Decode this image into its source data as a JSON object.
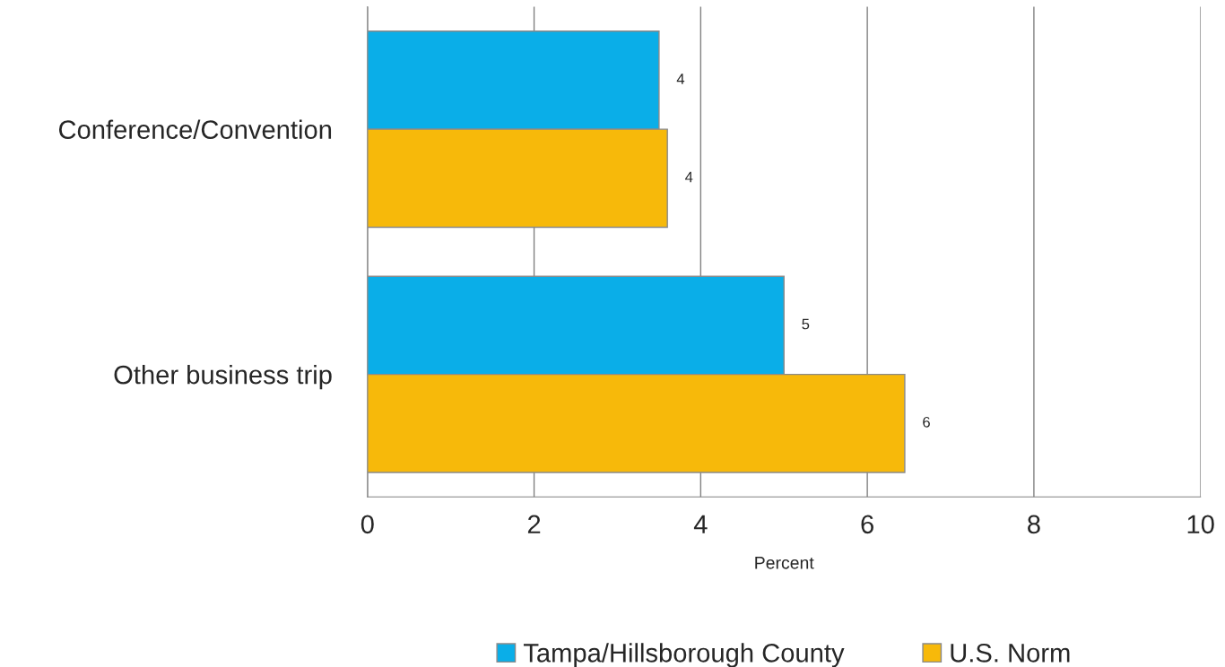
{
  "chart_data": {
    "type": "bar",
    "orientation": "horizontal",
    "categories": [
      "Conference/Convention",
      "Other business trip"
    ],
    "series": [
      {
        "name": "Tampa/Hillsborough County",
        "color": "#0aaee8",
        "values": [
          3.5,
          5.0
        ],
        "value_labels": [
          "4",
          "5"
        ]
      },
      {
        "name": "U.S. Norm",
        "color": "#f7b90a",
        "values": [
          3.6,
          6.45
        ],
        "value_labels": [
          "4",
          "6"
        ]
      }
    ],
    "xlabel": "Percent",
    "xlim": [
      0,
      10
    ],
    "xticks": [
      0,
      2,
      4,
      6,
      8,
      10
    ],
    "grid": "x",
    "legend": "bottom"
  }
}
